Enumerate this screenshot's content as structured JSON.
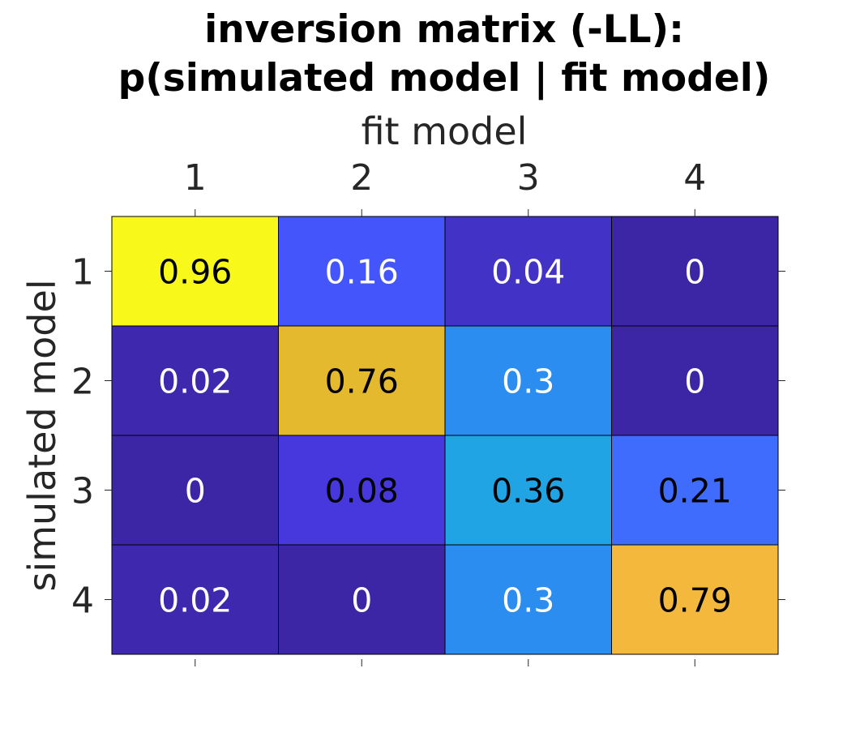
{
  "chart_data": {
    "type": "heatmap",
    "title_lines": [
      "inversion matrix (-LL):",
      "p(simulated model | fit model)"
    ],
    "xlabel": "fit model",
    "ylabel": "simulated model",
    "x_ticks": [
      "1",
      "2",
      "3",
      "4"
    ],
    "y_ticks": [
      "1",
      "2",
      "3",
      "4"
    ],
    "x_axis_position": "top",
    "colormap": "parula",
    "value_range": [
      0,
      1
    ],
    "grid": false,
    "rows": [
      {
        "simulated_model": "1",
        "values": [
          0.96,
          0.16,
          0.04,
          0
        ]
      },
      {
        "simulated_model": "2",
        "values": [
          0.02,
          0.76,
          0.3,
          0
        ]
      },
      {
        "simulated_model": "3",
        "values": [
          0,
          0.08,
          0.36,
          0.21
        ]
      },
      {
        "simulated_model": "4",
        "values": [
          0.02,
          0,
          0.3,
          0.79
        ]
      }
    ],
    "cell_labels": [
      [
        "0.96",
        "0.16",
        "0.04",
        "0"
      ],
      [
        "0.02",
        "0.76",
        "0.3",
        "0"
      ],
      [
        "0",
        "0.08",
        "0.36",
        "0.21"
      ],
      [
        "0.02",
        "0",
        "0.3",
        "0.79"
      ]
    ],
    "cell_colors": [
      [
        "#f8f91a",
        "#4456fb",
        "#4232c6",
        "#3c26a6"
      ],
      [
        "#3e28ae",
        "#e4b92e",
        "#2c8df1",
        "#3c26a6"
      ],
      [
        "#3c26a6",
        "#4738de",
        "#20a4e3",
        "#3f6cfd"
      ],
      [
        "#3e28ae",
        "#3c26a6",
        "#2c8df1",
        "#f4b93c"
      ]
    ],
    "label_colors": [
      [
        "#000000",
        "#ffffff",
        "#ffffff",
        "#ffffff"
      ],
      [
        "#ffffff",
        "#000000",
        "#ffffff",
        "#ffffff"
      ],
      [
        "#ffffff",
        "#000000",
        "#000000",
        "#000000"
      ],
      [
        "#ffffff",
        "#ffffff",
        "#ffffff",
        "#000000"
      ]
    ]
  }
}
